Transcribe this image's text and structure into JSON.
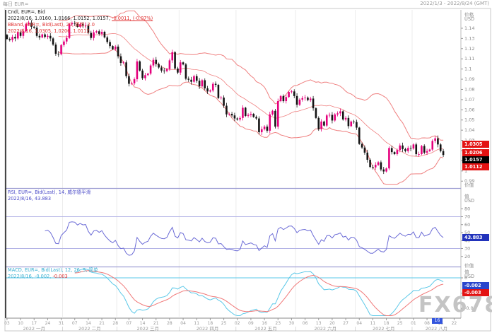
{
  "window": {
    "title": "每日 EUR=",
    "range_label": "2022/1/3 - 2022/8/24 (GMT)"
  },
  "watermark": "FX678",
  "colors": {
    "up": "#e5007d",
    "down": "#141414",
    "band": "#ef8080",
    "rsi": "#6b6bd6",
    "rsi_level": "#b3b3e6",
    "macd": "#5bc8e8",
    "signal": "#f07878",
    "grid": "#ececec",
    "axis_text": "#8a8a8a",
    "separator": "#9f9fd4",
    "border": "#c8c8c8",
    "axis_line": "#222222"
  },
  "main_panel": {
    "legend_line1": "Cndl, EUR=, Bid",
    "legend_line2": "2022/8/16, 1.0160, 1.0166, 1.0152, 1.0157,",
    "legend_line2_change": "-0.0011, (-0.07%)",
    "legend_line3": "BBand, EUR=, Bid(Last), 20, 简单, 2.0",
    "legend_line4": "2022/8/16, 1.0305, 1.0206, 1.0112",
    "axis_title": "价格",
    "axis_unit": "USD",
    "axis_caption_bottom": "价值",
    "tags": {
      "upper": "1.0305",
      "mid": "1.0206",
      "price": "1.0157",
      "lower": "1.0112"
    }
  },
  "rsi_panel": {
    "legend_line1": "RSI, EUR=, Bid(Last), 14, 威尔德平滑",
    "legend_line2": "2022/8/16, 43.883",
    "axis_title": "值",
    "axis_unit": "USD",
    "axis_caption_bottom": "价值",
    "tag": "43.883"
  },
  "macd_panel": {
    "legend_line1": "MACD, EUR=, Bid(Last), 12, 26, 9, 简单",
    "legend_line2": "2022/8/16, -0.002,",
    "legend_line2_signal": "-0.003",
    "axis_title": "值",
    "axis_unit": "USD",
    "tag_macd": "-0.002",
    "tag_signal": "-0.003"
  },
  "x_axis": {
    "week_labels": [
      "03",
      "10",
      "17",
      "24",
      "31",
      "07",
      "14",
      "21",
      "28",
      "07",
      "14",
      "21",
      "28",
      "04",
      "11",
      "18",
      "25",
      "02",
      "09",
      "16",
      "23",
      "30",
      "06",
      "13",
      "20",
      "27",
      "04",
      "11",
      "18",
      "25",
      "01",
      "08",
      "15",
      "22"
    ],
    "week_indices": [
      0,
      5,
      10,
      15,
      20,
      25,
      30,
      35,
      40,
      45,
      50,
      55,
      60,
      65,
      70,
      75,
      80,
      85,
      90,
      95,
      100,
      105,
      110,
      115,
      120,
      125,
      130,
      135,
      140,
      145,
      150,
      155,
      160,
      165
    ],
    "month_labels": [
      "2022 一月",
      "2022 二月",
      "2022 三月",
      "2022 四月",
      "2022 五月",
      "2022 六月",
      "2022 七月",
      "2022 八月"
    ],
    "month_start_indices": [
      0,
      21,
      41,
      64,
      85,
      107,
      129,
      150
    ],
    "month_separator": "|",
    "total_slots": 168,
    "current_tag": "16"
  },
  "chart_data": {
    "type": "candlestick",
    "symbol": "EUR=",
    "interval": "daily",
    "date_range": "2022/1/3 - 2022/8/16",
    "last_ohlc": {
      "open": 1.016,
      "high": 1.0166,
      "low": 1.0152,
      "close": 1.0157,
      "change": -0.0011,
      "change_pct": "-0.07%"
    },
    "indicators": {
      "bollinger": {
        "period": 20,
        "stdev": 2.0,
        "type": "简单",
        "upper": 1.0305,
        "mid": 1.0206,
        "lower": 1.0112
      },
      "rsi": {
        "period": 14,
        "type": "威尔德平滑",
        "value": 43.883,
        "levels": [
          70,
          30
        ]
      },
      "macd": {
        "fast": 12,
        "slow": 26,
        "signal": 9,
        "type": "简单",
        "macd_value": -0.002,
        "signal_value": -0.003
      }
    },
    "y_ticks_main": [
      "1.14",
      "1.13",
      "1.12",
      "1.11",
      "1.1",
      "1.09",
      "1.08",
      "1.07",
      "1.06",
      "1.05",
      "1.04",
      "1.03",
      "1.02",
      "1.01",
      "1",
      "0.99"
    ],
    "rsi_ticks": [
      "80",
      "70",
      "60",
      "50",
      "40",
      "30",
      "20"
    ],
    "macd_ticks": [
      "0",
      "-0.005",
      "-0.01"
    ],
    "closes": [
      1.1295,
      1.1285,
      1.1315,
      1.13,
      1.136,
      1.1325,
      1.137,
      1.144,
      1.1455,
      1.1415,
      1.1405,
      1.1325,
      1.131,
      1.134,
      1.1315,
      1.1325,
      1.13,
      1.124,
      1.115,
      1.1145,
      1.1235,
      1.127,
      1.1305,
      1.144,
      1.145,
      1.1445,
      1.1415,
      1.144,
      1.1425,
      1.143,
      1.1355,
      1.1305,
      1.136,
      1.137,
      1.1345,
      1.1365,
      1.131,
      1.1265,
      1.1225,
      1.1195,
      1.122,
      1.1125,
      1.106,
      1.1065,
      1.093,
      1.0855,
      1.086,
      1.09,
      1.1075,
      1.0985,
      1.091,
      1.094,
      1.0955,
      1.1035,
      1.109,
      1.105,
      1.1015,
      1.0985,
      1.098,
      1.1,
      1.1085,
      1.1165,
      1.1005,
      1.0965,
      1.1065,
      1.1045,
      1.0905,
      1.0895,
      1.0875,
      1.093,
      1.0885,
      1.083,
      1.089,
      1.081,
      1.078,
      1.079,
      1.0855,
      1.0845,
      1.0715,
      1.072,
      1.064,
      1.0555,
      1.056,
      1.0545,
      1.0515,
      1.0505,
      1.052,
      1.062,
      1.054,
      1.055,
      1.056,
      1.053,
      1.0515,
      1.038,
      1.041,
      1.0435,
      1.0395,
      1.0555,
      1.059,
      1.0435,
      1.0685,
      1.0735,
      1.0685,
      1.0725,
      1.0775,
      1.078,
      1.0735,
      1.065,
      1.07,
      1.0715,
      1.072,
      1.0695,
      1.071,
      1.0615,
      1.052,
      1.041,
      1.0485,
      1.0445,
      1.0545,
      1.055,
      1.0495,
      1.0555,
      1.0565,
      1.0585,
      1.0505,
      1.052,
      1.044,
      1.0485,
      1.048,
      1.0425,
      1.0265,
      1.023,
      1.018,
      1.011,
      1.004,
      1.0035,
      1.006,
      1.0085,
      1.0015,
      0.9995,
      1.0025,
      1.0225,
      1.0185,
      1.0165,
      1.0205,
      1.025,
      1.0215,
      1.0195,
      1.0225,
      1.022,
      1.026,
      1.0165,
      1.0165,
      1.0245,
      1.018,
      1.0195,
      1.021,
      1.0295,
      1.032,
      1.026,
      1.0195,
      1.0157
    ]
  }
}
